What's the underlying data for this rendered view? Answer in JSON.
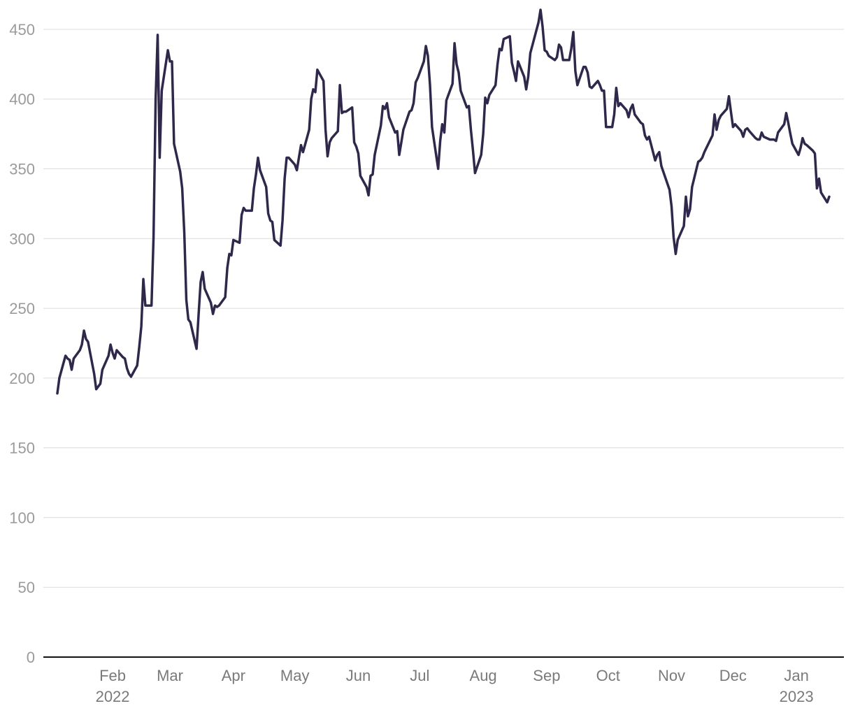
{
  "chart_data": {
    "type": "line",
    "title": "",
    "xlabel": "",
    "ylabel": "",
    "xlim": [
      "2022-01-04",
      "2023-01-31"
    ],
    "ylim": [
      0,
      460
    ],
    "grid": true,
    "legend": "none",
    "y_ticks": [
      0,
      50,
      100,
      150,
      200,
      250,
      300,
      350,
      400,
      450
    ],
    "x_ticks": [
      {
        "date": "2022-02-01",
        "label": "Feb",
        "sublabel": "2022"
      },
      {
        "date": "2022-03-01",
        "label": "Mar",
        "sublabel": ""
      },
      {
        "date": "2022-04-01",
        "label": "Apr",
        "sublabel": ""
      },
      {
        "date": "2022-05-01",
        "label": "May",
        "sublabel": ""
      },
      {
        "date": "2022-06-01",
        "label": "Jun",
        "sublabel": ""
      },
      {
        "date": "2022-07-01",
        "label": "Jul",
        "sublabel": ""
      },
      {
        "date": "2022-08-01",
        "label": "Aug",
        "sublabel": ""
      },
      {
        "date": "2022-09-01",
        "label": "Sep",
        "sublabel": ""
      },
      {
        "date": "2022-10-01",
        "label": "Oct",
        "sublabel": ""
      },
      {
        "date": "2022-11-01",
        "label": "Nov",
        "sublabel": ""
      },
      {
        "date": "2022-12-01",
        "label": "Dec",
        "sublabel": ""
      },
      {
        "date": "2023-01-01",
        "label": "Jan",
        "sublabel": "2023"
      }
    ],
    "colors": {
      "line": "#30284a",
      "grid": "#dcdcdc",
      "axis": "#111111",
      "tick_text": "#8c8c8c"
    },
    "series": [
      {
        "name": "",
        "points": [
          [
            "2022-01-05",
            189
          ],
          [
            "2022-01-06",
            200
          ],
          [
            "2022-01-09",
            216
          ],
          [
            "2022-01-10",
            214
          ],
          [
            "2022-01-11",
            213
          ],
          [
            "2022-01-12",
            206
          ],
          [
            "2022-01-13",
            214
          ],
          [
            "2022-01-16",
            220
          ],
          [
            "2022-01-17",
            224
          ],
          [
            "2022-01-18",
            234
          ],
          [
            "2022-01-19",
            228
          ],
          [
            "2022-01-20",
            226
          ],
          [
            "2022-01-23",
            203
          ],
          [
            "2022-01-24",
            192
          ],
          [
            "2022-01-26",
            196
          ],
          [
            "2022-01-27",
            206
          ],
          [
            "2022-01-30",
            216
          ],
          [
            "2022-01-31",
            224
          ],
          [
            "2022-02-01",
            218
          ],
          [
            "2022-02-02",
            214
          ],
          [
            "2022-02-03",
            220
          ],
          [
            "2022-02-06",
            215
          ],
          [
            "2022-02-07",
            214
          ],
          [
            "2022-02-08",
            207
          ],
          [
            "2022-02-09",
            203
          ],
          [
            "2022-02-10",
            201
          ],
          [
            "2022-02-13",
            209
          ],
          [
            "2022-02-14",
            222
          ],
          [
            "2022-02-15",
            237
          ],
          [
            "2022-02-16",
            271
          ],
          [
            "2022-02-17",
            252
          ],
          [
            "2022-02-20",
            252
          ],
          [
            "2022-02-21",
            301
          ],
          [
            "2022-02-22",
            400
          ],
          [
            "2022-02-23",
            446
          ],
          [
            "2022-02-24",
            358
          ],
          [
            "2022-02-25",
            406
          ],
          [
            "2022-02-28",
            435
          ],
          [
            "2022-03-01",
            427
          ],
          [
            "2022-03-02",
            427
          ],
          [
            "2022-03-03",
            368
          ],
          [
            "2022-03-06",
            348
          ],
          [
            "2022-03-07",
            336
          ],
          [
            "2022-03-08",
            304
          ],
          [
            "2022-03-09",
            256
          ],
          [
            "2022-03-10",
            242
          ],
          [
            "2022-03-11",
            240
          ],
          [
            "2022-03-14",
            221
          ],
          [
            "2022-03-15",
            246
          ],
          [
            "2022-03-16",
            269
          ],
          [
            "2022-03-17",
            276
          ],
          [
            "2022-03-18",
            264
          ],
          [
            "2022-03-21",
            254
          ],
          [
            "2022-03-22",
            246
          ],
          [
            "2022-03-23",
            252
          ],
          [
            "2022-03-24",
            251
          ],
          [
            "2022-03-25",
            252
          ],
          [
            "2022-03-28",
            258
          ],
          [
            "2022-03-29",
            279
          ],
          [
            "2022-03-30",
            289
          ],
          [
            "2022-03-31",
            288
          ],
          [
            "2022-04-01",
            299
          ],
          [
            "2022-04-04",
            297
          ],
          [
            "2022-04-05",
            317
          ],
          [
            "2022-04-06",
            322
          ],
          [
            "2022-04-07",
            320
          ],
          [
            "2022-04-10",
            320
          ],
          [
            "2022-04-11",
            336
          ],
          [
            "2022-04-12",
            346
          ],
          [
            "2022-04-13",
            358
          ],
          [
            "2022-04-14",
            349
          ],
          [
            "2022-04-17",
            337
          ],
          [
            "2022-04-18",
            318
          ],
          [
            "2022-04-19",
            313
          ],
          [
            "2022-04-20",
            312
          ],
          [
            "2022-04-21",
            299
          ],
          [
            "2022-04-24",
            295
          ],
          [
            "2022-04-25",
            313
          ],
          [
            "2022-04-26",
            343
          ],
          [
            "2022-04-27",
            358
          ],
          [
            "2022-04-28",
            358
          ],
          [
            "2022-05-01",
            353
          ],
          [
            "2022-05-02",
            349
          ],
          [
            "2022-05-03",
            358
          ],
          [
            "2022-05-04",
            367
          ],
          [
            "2022-05-05",
            362
          ],
          [
            "2022-05-08",
            378
          ],
          [
            "2022-05-09",
            400
          ],
          [
            "2022-05-10",
            407
          ],
          [
            "2022-05-11",
            405
          ],
          [
            "2022-05-12",
            421
          ],
          [
            "2022-05-15",
            413
          ],
          [
            "2022-05-16",
            378
          ],
          [
            "2022-05-17",
            359
          ],
          [
            "2022-05-18",
            369
          ],
          [
            "2022-05-19",
            372
          ],
          [
            "2022-05-22",
            377
          ],
          [
            "2022-05-23",
            410
          ],
          [
            "2022-05-24",
            390
          ],
          [
            "2022-05-25",
            391
          ],
          [
            "2022-05-26",
            391
          ],
          [
            "2022-05-29",
            394
          ],
          [
            "2022-05-30",
            369
          ],
          [
            "2022-05-31",
            366
          ],
          [
            "2022-06-01",
            361
          ],
          [
            "2022-06-02",
            345
          ],
          [
            "2022-06-05",
            337
          ],
          [
            "2022-06-06",
            331
          ],
          [
            "2022-06-07",
            345
          ],
          [
            "2022-06-08",
            346
          ],
          [
            "2022-06-09",
            360
          ],
          [
            "2022-06-12",
            381
          ],
          [
            "2022-06-13",
            395
          ],
          [
            "2022-06-14",
            393
          ],
          [
            "2022-06-15",
            397
          ],
          [
            "2022-06-16",
            387
          ],
          [
            "2022-06-19",
            376
          ],
          [
            "2022-06-20",
            377
          ],
          [
            "2022-06-21",
            360
          ],
          [
            "2022-06-22",
            369
          ],
          [
            "2022-06-23",
            378
          ],
          [
            "2022-06-26",
            391
          ],
          [
            "2022-06-27",
            392
          ],
          [
            "2022-06-28",
            397
          ],
          [
            "2022-06-29",
            412
          ],
          [
            "2022-06-30",
            415
          ],
          [
            "2022-07-03",
            427
          ],
          [
            "2022-07-04",
            438
          ],
          [
            "2022-07-05",
            431
          ],
          [
            "2022-07-06",
            410
          ],
          [
            "2022-07-07",
            380
          ],
          [
            "2022-07-10",
            350
          ],
          [
            "2022-07-11",
            370
          ],
          [
            "2022-07-12",
            382
          ],
          [
            "2022-07-13",
            376
          ],
          [
            "2022-07-14",
            399
          ],
          [
            "2022-07-17",
            411
          ],
          [
            "2022-07-18",
            440
          ],
          [
            "2022-07-19",
            425
          ],
          [
            "2022-07-20",
            419
          ],
          [
            "2022-07-21",
            406
          ],
          [
            "2022-07-24",
            394
          ],
          [
            "2022-07-25",
            395
          ],
          [
            "2022-07-26",
            378
          ],
          [
            "2022-07-27",
            363
          ],
          [
            "2022-07-28",
            347
          ],
          [
            "2022-07-31",
            360
          ],
          [
            "2022-08-01",
            375
          ],
          [
            "2022-08-02",
            401
          ],
          [
            "2022-08-03",
            397
          ],
          [
            "2022-08-04",
            403
          ],
          [
            "2022-08-07",
            410
          ],
          [
            "2022-08-08",
            425
          ],
          [
            "2022-08-09",
            436
          ],
          [
            "2022-08-10",
            435
          ],
          [
            "2022-08-11",
            443
          ],
          [
            "2022-08-14",
            445
          ],
          [
            "2022-08-15",
            426
          ],
          [
            "2022-08-16",
            420
          ],
          [
            "2022-08-17",
            413
          ],
          [
            "2022-08-18",
            427
          ],
          [
            "2022-08-21",
            416
          ],
          [
            "2022-08-22",
            407
          ],
          [
            "2022-08-23",
            416
          ],
          [
            "2022-08-24",
            433
          ],
          [
            "2022-08-28",
            455
          ],
          [
            "2022-08-29",
            464
          ],
          [
            "2022-08-30",
            452
          ],
          [
            "2022-08-31",
            435
          ],
          [
            "2022-09-01",
            434
          ],
          [
            "2022-09-02",
            431
          ],
          [
            "2022-09-05",
            428
          ],
          [
            "2022-09-06",
            430
          ],
          [
            "2022-09-07",
            439
          ],
          [
            "2022-09-08",
            437
          ],
          [
            "2022-09-09",
            428
          ],
          [
            "2022-09-12",
            428
          ],
          [
            "2022-09-13",
            436
          ],
          [
            "2022-09-14",
            448
          ],
          [
            "2022-09-15",
            420
          ],
          [
            "2022-09-16",
            410
          ],
          [
            "2022-09-19",
            423
          ],
          [
            "2022-09-20",
            423
          ],
          [
            "2022-09-21",
            419
          ],
          [
            "2022-09-22",
            409
          ],
          [
            "2022-09-23",
            408
          ],
          [
            "2022-09-26",
            413
          ],
          [
            "2022-09-27",
            410
          ],
          [
            "2022-09-28",
            406
          ],
          [
            "2022-09-29",
            406
          ],
          [
            "2022-09-30",
            380
          ],
          [
            "2022-10-03",
            380
          ],
          [
            "2022-10-04",
            389
          ],
          [
            "2022-10-05",
            408
          ],
          [
            "2022-10-06",
            395
          ],
          [
            "2022-10-07",
            397
          ],
          [
            "2022-10-10",
            392
          ],
          [
            "2022-10-11",
            387
          ],
          [
            "2022-10-12",
            393
          ],
          [
            "2022-10-13",
            396
          ],
          [
            "2022-10-14",
            389
          ],
          [
            "2022-10-17",
            383
          ],
          [
            "2022-10-18",
            382
          ],
          [
            "2022-10-19",
            374
          ],
          [
            "2022-10-20",
            371
          ],
          [
            "2022-10-21",
            373
          ],
          [
            "2022-10-24",
            356
          ],
          [
            "2022-10-25",
            360
          ],
          [
            "2022-10-26",
            362
          ],
          [
            "2022-10-27",
            352
          ],
          [
            "2022-10-31",
            335
          ],
          [
            "2022-11-01",
            323
          ],
          [
            "2022-11-02",
            301
          ],
          [
            "2022-11-03",
            289
          ],
          [
            "2022-11-04",
            299
          ],
          [
            "2022-11-07",
            309
          ],
          [
            "2022-11-08",
            330
          ],
          [
            "2022-11-09",
            316
          ],
          [
            "2022-11-10",
            321
          ],
          [
            "2022-11-11",
            337
          ],
          [
            "2022-11-14",
            355
          ],
          [
            "2022-11-15",
            356
          ],
          [
            "2022-11-16",
            358
          ],
          [
            "2022-11-17",
            362
          ],
          [
            "2022-11-18",
            365
          ],
          [
            "2022-11-21",
            374
          ],
          [
            "2022-11-22",
            389
          ],
          [
            "2022-11-23",
            378
          ],
          [
            "2022-11-24",
            385
          ],
          [
            "2022-11-25",
            388
          ],
          [
            "2022-11-28",
            393
          ],
          [
            "2022-11-29",
            402
          ],
          [
            "2022-11-30",
            391
          ],
          [
            "2022-12-01",
            380
          ],
          [
            "2022-12-02",
            382
          ],
          [
            "2022-12-05",
            377
          ],
          [
            "2022-12-06",
            373
          ],
          [
            "2022-12-07",
            378
          ],
          [
            "2022-12-08",
            379
          ],
          [
            "2022-12-09",
            377
          ],
          [
            "2022-12-12",
            372
          ],
          [
            "2022-12-13",
            371
          ],
          [
            "2022-12-14",
            371
          ],
          [
            "2022-12-15",
            376
          ],
          [
            "2022-12-16",
            373
          ],
          [
            "2022-12-19",
            371
          ],
          [
            "2022-12-20",
            371
          ],
          [
            "2022-12-21",
            371
          ],
          [
            "2022-12-22",
            370
          ],
          [
            "2022-12-23",
            376
          ],
          [
            "2022-12-26",
            382
          ],
          [
            "2022-12-27",
            390
          ],
          [
            "2022-12-28",
            383
          ],
          [
            "2022-12-29",
            375
          ],
          [
            "2022-12-30",
            368
          ],
          [
            "2023-01-02",
            360
          ],
          [
            "2023-01-03",
            365
          ],
          [
            "2023-01-04",
            372
          ],
          [
            "2023-01-05",
            368
          ],
          [
            "2023-01-06",
            367
          ],
          [
            "2023-01-09",
            363
          ],
          [
            "2023-01-10",
            361
          ],
          [
            "2023-01-11",
            336
          ],
          [
            "2023-01-12",
            343
          ],
          [
            "2023-01-13",
            333
          ],
          [
            "2023-01-16",
            326
          ],
          [
            "2023-01-17",
            330
          ]
        ]
      }
    ]
  }
}
